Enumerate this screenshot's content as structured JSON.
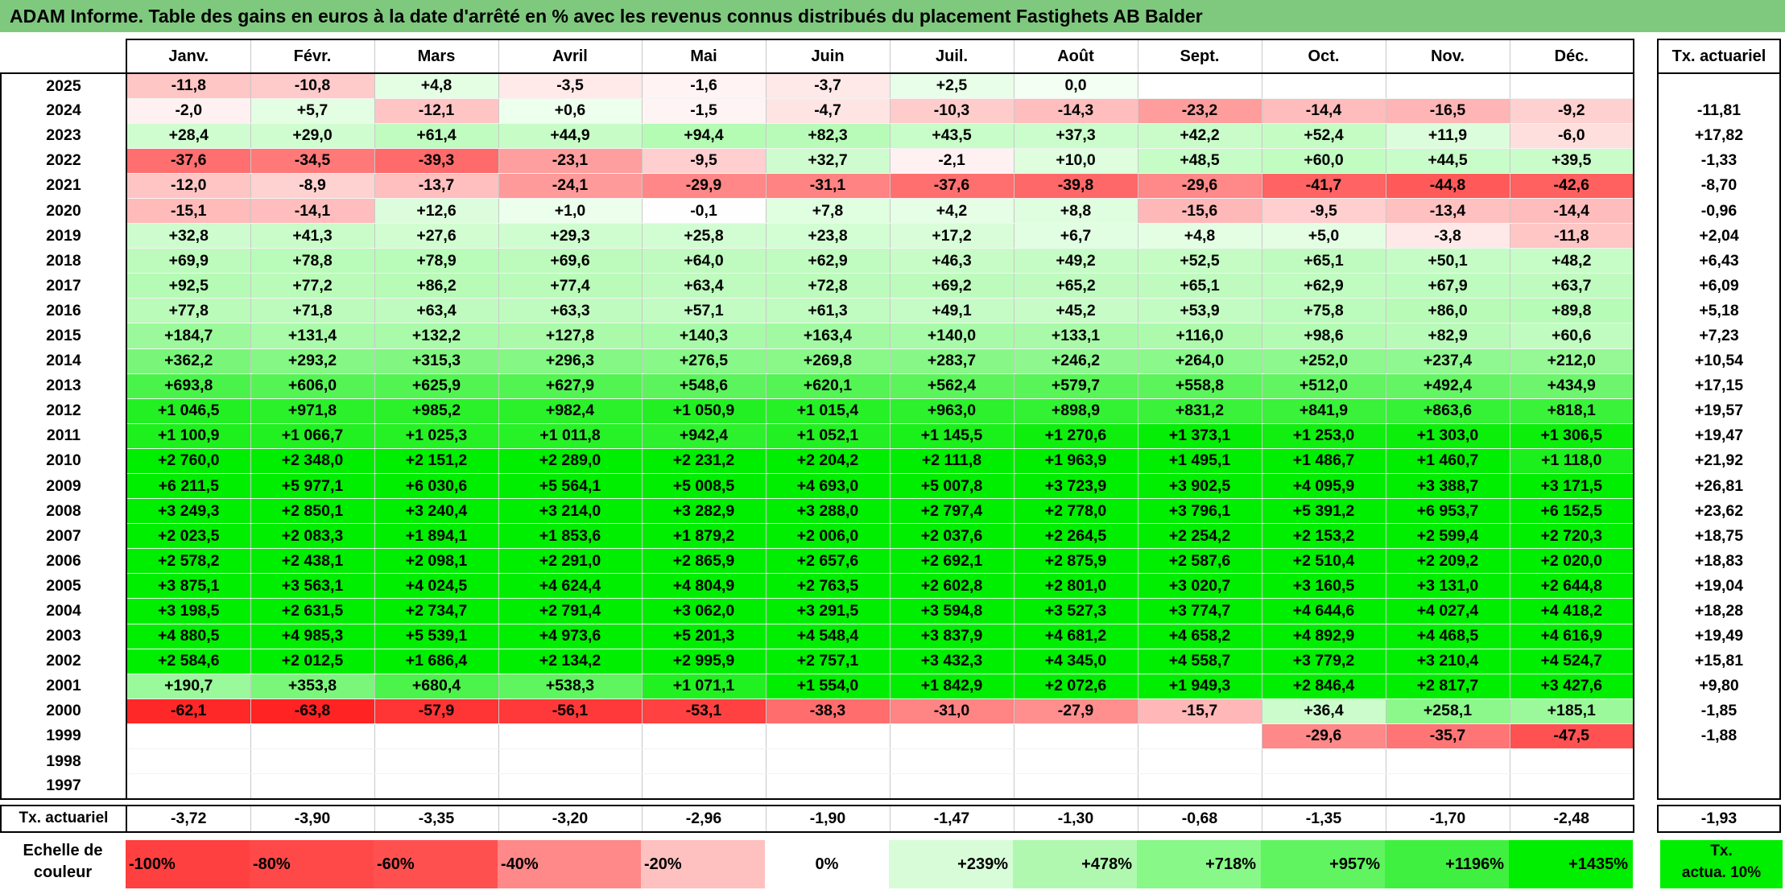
{
  "title": "ADAM Informe. Table des gains en euros à la date d'arrêté en % avec les revenus connus distribués du placement Fastighets AB Balder",
  "months": [
    "Janv.",
    "Févr.",
    "Mars",
    "Avril",
    "Mai",
    "Juin",
    "Juil.",
    "Août",
    "Sept.",
    "Oct.",
    "Nov.",
    "Déc."
  ],
  "rate_header": "Tx. actuariel",
  "rows": [
    {
      "year": "2025",
      "values": [
        "-11,8",
        "-10,8",
        "+4,8",
        "-3,5",
        "-1,6",
        "-3,7",
        "+2,5",
        "0,0",
        "",
        "",
        "",
        ""
      ],
      "rate": ""
    },
    {
      "year": "2024",
      "values": [
        "-2,0",
        "+5,7",
        "-12,1",
        "+0,6",
        "-1,5",
        "-4,7",
        "-10,3",
        "-14,3",
        "-23,2",
        "-14,4",
        "-16,5",
        "-9,2"
      ],
      "rate": "-11,81"
    },
    {
      "year": "2023",
      "values": [
        "+28,4",
        "+29,0",
        "+61,4",
        "+44,9",
        "+94,4",
        "+82,3",
        "+43,5",
        "+37,3",
        "+42,2",
        "+52,4",
        "+11,9",
        "-6,0"
      ],
      "rate": "+17,82"
    },
    {
      "year": "2022",
      "values": [
        "-37,6",
        "-34,5",
        "-39,3",
        "-23,1",
        "-9,5",
        "+32,7",
        "-2,1",
        "+10,0",
        "+48,5",
        "+60,0",
        "+44,5",
        "+39,5"
      ],
      "rate": "-1,33"
    },
    {
      "year": "2021",
      "values": [
        "-12,0",
        "-8,9",
        "-13,7",
        "-24,1",
        "-29,9",
        "-31,1",
        "-37,6",
        "-39,8",
        "-29,6",
        "-41,7",
        "-44,8",
        "-42,6"
      ],
      "rate": "-8,70"
    },
    {
      "year": "2020",
      "values": [
        "-15,1",
        "-14,1",
        "+12,6",
        "+1,0",
        "-0,1",
        "+7,8",
        "+4,2",
        "+8,8",
        "-15,6",
        "-9,5",
        "-13,4",
        "-14,4"
      ],
      "rate": "-0,96"
    },
    {
      "year": "2019",
      "values": [
        "+32,8",
        "+41,3",
        "+27,6",
        "+29,3",
        "+25,8",
        "+23,8",
        "+17,2",
        "+6,7",
        "+4,8",
        "+5,0",
        "-3,8",
        "-11,8"
      ],
      "rate": "+2,04"
    },
    {
      "year": "2018",
      "values": [
        "+69,9",
        "+78,8",
        "+78,9",
        "+69,6",
        "+64,0",
        "+62,9",
        "+46,3",
        "+49,2",
        "+52,5",
        "+65,1",
        "+50,1",
        "+48,2"
      ],
      "rate": "+6,43"
    },
    {
      "year": "2017",
      "values": [
        "+92,5",
        "+77,2",
        "+86,2",
        "+77,4",
        "+63,4",
        "+72,8",
        "+69,2",
        "+65,2",
        "+65,1",
        "+62,9",
        "+67,9",
        "+63,7"
      ],
      "rate": "+6,09"
    },
    {
      "year": "2016",
      "values": [
        "+77,8",
        "+71,8",
        "+63,4",
        "+63,3",
        "+57,1",
        "+61,3",
        "+49,1",
        "+45,2",
        "+53,9",
        "+75,8",
        "+86,0",
        "+89,8"
      ],
      "rate": "+5,18"
    },
    {
      "year": "2015",
      "values": [
        "+184,7",
        "+131,4",
        "+132,2",
        "+127,8",
        "+140,3",
        "+163,4",
        "+140,0",
        "+133,1",
        "+116,0",
        "+98,6",
        "+82,9",
        "+60,6"
      ],
      "rate": "+7,23"
    },
    {
      "year": "2014",
      "values": [
        "+362,2",
        "+293,2",
        "+315,3",
        "+296,3",
        "+276,5",
        "+269,8",
        "+283,7",
        "+246,2",
        "+264,0",
        "+252,0",
        "+237,4",
        "+212,0"
      ],
      "rate": "+10,54"
    },
    {
      "year": "2013",
      "values": [
        "+693,8",
        "+606,0",
        "+625,9",
        "+627,9",
        "+548,6",
        "+620,1",
        "+562,4",
        "+579,7",
        "+558,8",
        "+512,0",
        "+492,4",
        "+434,9"
      ],
      "rate": "+17,15"
    },
    {
      "year": "2012",
      "values": [
        "+1 046,5",
        "+971,8",
        "+985,2",
        "+982,4",
        "+1 050,9",
        "+1 015,4",
        "+963,0",
        "+898,9",
        "+831,2",
        "+841,9",
        "+863,6",
        "+818,1"
      ],
      "rate": "+19,57"
    },
    {
      "year": "2011",
      "values": [
        "+1 100,9",
        "+1 066,7",
        "+1 025,3",
        "+1 011,8",
        "+942,4",
        "+1 052,1",
        "+1 145,5",
        "+1 270,6",
        "+1 373,1",
        "+1 253,0",
        "+1 303,0",
        "+1 306,5"
      ],
      "rate": "+19,47"
    },
    {
      "year": "2010",
      "values": [
        "+2 760,0",
        "+2 348,0",
        "+2 151,2",
        "+2 289,0",
        "+2 231,2",
        "+2 204,2",
        "+2 111,8",
        "+1 963,9",
        "+1 495,1",
        "+1 486,7",
        "+1 460,7",
        "+1 118,0"
      ],
      "rate": "+21,92"
    },
    {
      "year": "2009",
      "values": [
        "+6 211,5",
        "+5 977,1",
        "+6 030,6",
        "+5 564,1",
        "+5 008,5",
        "+4 693,0",
        "+5 007,8",
        "+3 723,9",
        "+3 902,5",
        "+4 095,9",
        "+3 388,7",
        "+3 171,5"
      ],
      "rate": "+26,81"
    },
    {
      "year": "2008",
      "values": [
        "+3 249,3",
        "+2 850,1",
        "+3 240,4",
        "+3 214,0",
        "+3 282,9",
        "+3 288,0",
        "+2 797,4",
        "+2 778,0",
        "+3 796,1",
        "+5 391,2",
        "+6 953,7",
        "+6 152,5"
      ],
      "rate": "+23,62"
    },
    {
      "year": "2007",
      "values": [
        "+2 023,5",
        "+2 083,3",
        "+1 894,1",
        "+1 853,6",
        "+1 879,2",
        "+2 006,0",
        "+2 037,6",
        "+2 264,5",
        "+2 254,2",
        "+2 153,2",
        "+2 599,4",
        "+2 720,3"
      ],
      "rate": "+18,75"
    },
    {
      "year": "2006",
      "values": [
        "+2 578,2",
        "+2 438,1",
        "+2 098,1",
        "+2 291,0",
        "+2 865,9",
        "+2 657,6",
        "+2 692,1",
        "+2 875,9",
        "+2 587,6",
        "+2 510,4",
        "+2 209,2",
        "+2 020,0"
      ],
      "rate": "+18,83"
    },
    {
      "year": "2005",
      "values": [
        "+3 875,1",
        "+3 563,1",
        "+4 024,5",
        "+4 624,4",
        "+4 804,9",
        "+2 763,5",
        "+2 602,8",
        "+2 801,0",
        "+3 020,7",
        "+3 160,5",
        "+3 131,0",
        "+2 644,8"
      ],
      "rate": "+19,04"
    },
    {
      "year": "2004",
      "values": [
        "+3 198,5",
        "+2 631,5",
        "+2 734,7",
        "+2 791,4",
        "+3 062,0",
        "+3 291,5",
        "+3 594,8",
        "+3 527,3",
        "+3 774,7",
        "+4 644,6",
        "+4 027,4",
        "+4 418,2"
      ],
      "rate": "+18,28"
    },
    {
      "year": "2003",
      "values": [
        "+4 880,5",
        "+4 985,3",
        "+5 539,1",
        "+4 973,6",
        "+5 201,3",
        "+4 548,4",
        "+3 837,9",
        "+4 681,2",
        "+4 658,2",
        "+4 892,9",
        "+4 468,5",
        "+4 616,9"
      ],
      "rate": "+19,49"
    },
    {
      "year": "2002",
      "values": [
        "+2 584,6",
        "+2 012,5",
        "+1 686,4",
        "+2 134,2",
        "+2 995,9",
        "+2 757,1",
        "+3 432,3",
        "+4 345,0",
        "+4 558,7",
        "+3 779,2",
        "+3 210,4",
        "+4 524,7"
      ],
      "rate": "+15,81"
    },
    {
      "year": "2001",
      "values": [
        "+190,7",
        "+353,8",
        "+680,4",
        "+538,3",
        "+1 071,1",
        "+1 554,0",
        "+1 842,9",
        "+2 072,6",
        "+1 949,3",
        "+2 846,4",
        "+2 817,7",
        "+3 427,6"
      ],
      "rate": "+9,80"
    },
    {
      "year": "2000",
      "values": [
        "-62,1",
        "-63,8",
        "-57,9",
        "-56,1",
        "-53,1",
        "-38,3",
        "-31,0",
        "-27,9",
        "-15,7",
        "+36,4",
        "+258,1",
        "+185,1"
      ],
      "rate": "-1,85"
    },
    {
      "year": "1999",
      "values": [
        "",
        "",
        "",
        "",
        "",
        "",
        "",
        "",
        "",
        "-29,6",
        "-35,7",
        "-47,5"
      ],
      "rate": "-1,88"
    },
    {
      "year": "1998",
      "values": [
        "",
        "",
        "",
        "",
        "",
        "",
        "",
        "",
        "",
        "",
        "",
        ""
      ],
      "rate": ""
    },
    {
      "year": "1997",
      "values": [
        "",
        "",
        "",
        "",
        "",
        "",
        "",
        "",
        "",
        "",
        "",
        ""
      ],
      "rate": ""
    }
  ],
  "average_row": {
    "label": "Tx. actuariel",
    "values": [
      "-3,72",
      "-3,90",
      "-3,35",
      "-3,20",
      "-2,96",
      "-1,90",
      "-1,47",
      "-1,30",
      "-0,68",
      "-1,35",
      "-1,70",
      "-2,48"
    ],
    "rate": "-1,93"
  },
  "legend": {
    "label_line1": "Echelle de",
    "label_line2": "couleur",
    "items": [
      {
        "label": "-100%",
        "color": "#ff4040"
      },
      {
        "label": "-80%",
        "color": "#ff4848"
      },
      {
        "label": "-60%",
        "color": "#ff5050"
      },
      {
        "label": "-40%",
        "color": "#ff8888"
      },
      {
        "label": "-20%",
        "color": "#ffc0c0"
      },
      {
        "label": "0%",
        "color": "#ffffff"
      },
      {
        "label": "+239%",
        "color": "#d8fcd8"
      },
      {
        "label": "+478%",
        "color": "#b0f8b0"
      },
      {
        "label": "+718%",
        "color": "#88f888"
      },
      {
        "label": "+957%",
        "color": "#60f460"
      },
      {
        "label": "+1196%",
        "color": "#40f040"
      },
      {
        "label": "+1435%",
        "color": "#00ee00"
      }
    ],
    "tx_line1": "Tx.",
    "tx_line2": "actua. 10%"
  },
  "colors": {
    "title_bg": "#7fc97f",
    "full_green": "#00ee00",
    "full_red": "#ff2020"
  }
}
